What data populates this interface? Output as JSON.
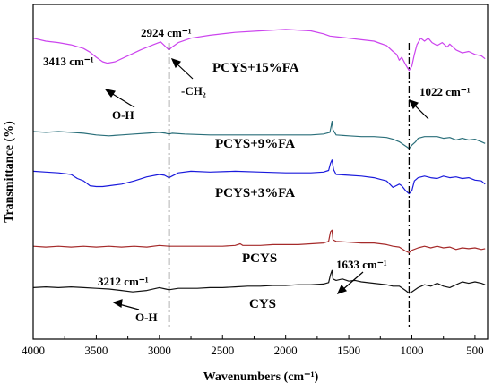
{
  "chart_data": {
    "type": "line",
    "xlabel": "Wavenumbers (cm⁻¹)",
    "ylabel": "Transmittance (%)",
    "xlim": [
      4000,
      400
    ],
    "x_reversed": true,
    "x_ticks": [
      4000,
      3500,
      3000,
      2500,
      2000,
      1500,
      1000,
      500
    ],
    "y_ticks_shown": false,
    "grid": false,
    "series": [
      {
        "name": "PCYS+15%FA",
        "color": "#cc44ee",
        "points": [
          [
            4000,
            44
          ],
          [
            3900,
            40
          ],
          [
            3800,
            38
          ],
          [
            3700,
            35
          ],
          [
            3600,
            30
          ],
          [
            3550,
            25
          ],
          [
            3500,
            18
          ],
          [
            3450,
            12
          ],
          [
            3413,
            10
          ],
          [
            3350,
            12
          ],
          [
            3250,
            20
          ],
          [
            3150,
            28
          ],
          [
            3050,
            35
          ],
          [
            2990,
            39
          ],
          [
            2960,
            34
          ],
          [
            2924,
            28
          ],
          [
            2900,
            32
          ],
          [
            2850,
            38
          ],
          [
            2750,
            44
          ],
          [
            2600,
            48
          ],
          [
            2400,
            52
          ],
          [
            2200,
            54
          ],
          [
            2000,
            56
          ],
          [
            1800,
            54
          ],
          [
            1700,
            50
          ],
          [
            1650,
            47
          ],
          [
            1600,
            46
          ],
          [
            1500,
            44
          ],
          [
            1400,
            42
          ],
          [
            1300,
            40
          ],
          [
            1250,
            37
          ],
          [
            1200,
            34
          ],
          [
            1150,
            26
          ],
          [
            1120,
            22
          ],
          [
            1100,
            14
          ],
          [
            1080,
            18
          ],
          [
            1050,
            8
          ],
          [
            1022,
            0
          ],
          [
            1000,
            6
          ],
          [
            980,
            22
          ],
          [
            960,
            35
          ],
          [
            930,
            44
          ],
          [
            900,
            40
          ],
          [
            870,
            44
          ],
          [
            840,
            38
          ],
          [
            800,
            34
          ],
          [
            760,
            38
          ],
          [
            720,
            32
          ],
          [
            700,
            36
          ],
          [
            650,
            28
          ],
          [
            600,
            24
          ],
          [
            550,
            26
          ],
          [
            500,
            22
          ],
          [
            450,
            20
          ],
          [
            420,
            16
          ]
        ]
      },
      {
        "name": "PCYS+9%FA",
        "color": "#2a6f7a",
        "points": [
          [
            4000,
            10
          ],
          [
            3900,
            9
          ],
          [
            3800,
            10
          ],
          [
            3700,
            9
          ],
          [
            3600,
            8
          ],
          [
            3500,
            6
          ],
          [
            3400,
            5
          ],
          [
            3300,
            6
          ],
          [
            3200,
            7
          ],
          [
            3100,
            8
          ],
          [
            3000,
            9
          ],
          [
            2950,
            8
          ],
          [
            2924,
            7
          ],
          [
            2900,
            8
          ],
          [
            2800,
            7
          ],
          [
            2600,
            6
          ],
          [
            2400,
            6
          ],
          [
            2200,
            6
          ],
          [
            2000,
            6
          ],
          [
            1800,
            6
          ],
          [
            1700,
            7
          ],
          [
            1650,
            9
          ],
          [
            1640,
            16
          ],
          [
            1633,
            22
          ],
          [
            1625,
            12
          ],
          [
            1600,
            6
          ],
          [
            1500,
            5
          ],
          [
            1400,
            4
          ],
          [
            1300,
            4
          ],
          [
            1200,
            3
          ],
          [
            1150,
            1
          ],
          [
            1100,
            -2
          ],
          [
            1060,
            -6
          ],
          [
            1040,
            -8
          ],
          [
            1022,
            -10
          ],
          [
            1000,
            -6
          ],
          [
            970,
            -2
          ],
          [
            950,
            2
          ],
          [
            900,
            4
          ],
          [
            850,
            4
          ],
          [
            800,
            4
          ],
          [
            750,
            2
          ],
          [
            700,
            3
          ],
          [
            650,
            0
          ],
          [
            600,
            2
          ],
          [
            550,
            0
          ],
          [
            500,
            1
          ],
          [
            450,
            -2
          ],
          [
            420,
            -4
          ]
        ]
      },
      {
        "name": "PCYS+3%FA",
        "color": "#1a1adc",
        "points": [
          [
            4000,
            14
          ],
          [
            3900,
            13
          ],
          [
            3800,
            12
          ],
          [
            3700,
            10
          ],
          [
            3650,
            5
          ],
          [
            3600,
            2
          ],
          [
            3550,
            -4
          ],
          [
            3500,
            -5
          ],
          [
            3450,
            -5
          ],
          [
            3400,
            -4
          ],
          [
            3300,
            -2
          ],
          [
            3200,
            2
          ],
          [
            3100,
            7
          ],
          [
            3000,
            10
          ],
          [
            2960,
            9
          ],
          [
            2924,
            6
          ],
          [
            2900,
            8
          ],
          [
            2850,
            12
          ],
          [
            2750,
            14
          ],
          [
            2600,
            13
          ],
          [
            2400,
            14
          ],
          [
            2200,
            13
          ],
          [
            2000,
            12
          ],
          [
            1800,
            12
          ],
          [
            1700,
            13
          ],
          [
            1660,
            15
          ],
          [
            1645,
            24
          ],
          [
            1633,
            28
          ],
          [
            1620,
            16
          ],
          [
            1600,
            10
          ],
          [
            1500,
            9
          ],
          [
            1400,
            8
          ],
          [
            1300,
            6
          ],
          [
            1250,
            4
          ],
          [
            1200,
            2
          ],
          [
            1150,
            -6
          ],
          [
            1100,
            -2
          ],
          [
            1080,
            -4
          ],
          [
            1050,
            -10
          ],
          [
            1022,
            -14
          ],
          [
            1000,
            -10
          ],
          [
            980,
            2
          ],
          [
            950,
            6
          ],
          [
            900,
            8
          ],
          [
            850,
            6
          ],
          [
            800,
            5
          ],
          [
            750,
            8
          ],
          [
            700,
            6
          ],
          [
            650,
            7
          ],
          [
            600,
            5
          ],
          [
            550,
            6
          ],
          [
            500,
            3
          ],
          [
            450,
            2
          ],
          [
            420,
            -2
          ]
        ]
      },
      {
        "name": "PCYS",
        "color": "#a52a2a",
        "points": [
          [
            4000,
            12
          ],
          [
            3900,
            11
          ],
          [
            3800,
            12
          ],
          [
            3700,
            11
          ],
          [
            3600,
            12
          ],
          [
            3500,
            11
          ],
          [
            3400,
            12
          ],
          [
            3300,
            11
          ],
          [
            3200,
            12
          ],
          [
            3100,
            11
          ],
          [
            3000,
            13
          ],
          [
            2924,
            12
          ],
          [
            2800,
            12
          ],
          [
            2700,
            12
          ],
          [
            2600,
            12
          ],
          [
            2500,
            12
          ],
          [
            2400,
            13
          ],
          [
            2360,
            15
          ],
          [
            2340,
            13
          ],
          [
            2300,
            13
          ],
          [
            2200,
            13
          ],
          [
            2100,
            14
          ],
          [
            2000,
            14
          ],
          [
            1900,
            14
          ],
          [
            1800,
            15
          ],
          [
            1700,
            16
          ],
          [
            1660,
            18
          ],
          [
            1645,
            30
          ],
          [
            1633,
            32
          ],
          [
            1625,
            20
          ],
          [
            1600,
            18
          ],
          [
            1500,
            17
          ],
          [
            1400,
            16
          ],
          [
            1300,
            16
          ],
          [
            1200,
            14
          ],
          [
            1150,
            12
          ],
          [
            1100,
            11
          ],
          [
            1050,
            6
          ],
          [
            1022,
            4
          ],
          [
            1000,
            7
          ],
          [
            950,
            10
          ],
          [
            900,
            12
          ],
          [
            850,
            10
          ],
          [
            800,
            12
          ],
          [
            750,
            10
          ],
          [
            700,
            11
          ],
          [
            650,
            8
          ],
          [
            600,
            10
          ],
          [
            550,
            9
          ],
          [
            500,
            10
          ],
          [
            450,
            8
          ],
          [
            420,
            9
          ]
        ]
      },
      {
        "name": "CYS",
        "color": "#111111",
        "points": [
          [
            4000,
            12
          ],
          [
            3900,
            13
          ],
          [
            3800,
            12
          ],
          [
            3700,
            13
          ],
          [
            3600,
            12
          ],
          [
            3500,
            11
          ],
          [
            3400,
            10
          ],
          [
            3300,
            8
          ],
          [
            3212,
            6
          ],
          [
            3100,
            8
          ],
          [
            3000,
            12
          ],
          [
            2950,
            10
          ],
          [
            2924,
            9
          ],
          [
            2850,
            11
          ],
          [
            2700,
            11
          ],
          [
            2600,
            12
          ],
          [
            2500,
            12
          ],
          [
            2400,
            13
          ],
          [
            2300,
            14
          ],
          [
            2200,
            14
          ],
          [
            2100,
            15
          ],
          [
            2000,
            15
          ],
          [
            1900,
            16
          ],
          [
            1800,
            16
          ],
          [
            1700,
            17
          ],
          [
            1660,
            19
          ],
          [
            1645,
            30
          ],
          [
            1633,
            36
          ],
          [
            1625,
            24
          ],
          [
            1600,
            22
          ],
          [
            1550,
            24
          ],
          [
            1500,
            21
          ],
          [
            1450,
            22
          ],
          [
            1400,
            20
          ],
          [
            1300,
            18
          ],
          [
            1200,
            16
          ],
          [
            1150,
            14
          ],
          [
            1100,
            14
          ],
          [
            1050,
            8
          ],
          [
            1022,
            4
          ],
          [
            1000,
            6
          ],
          [
            950,
            12
          ],
          [
            900,
            16
          ],
          [
            850,
            14
          ],
          [
            800,
            18
          ],
          [
            750,
            14
          ],
          [
            700,
            12
          ],
          [
            650,
            16
          ],
          [
            600,
            20
          ],
          [
            550,
            18
          ],
          [
            500,
            20
          ],
          [
            450,
            18
          ],
          [
            420,
            16
          ]
        ]
      }
    ],
    "series_labels": [
      {
        "text": "PCYS+15%FA",
        "color": "#cc44ee"
      },
      {
        "text": "PCYS+9%FA",
        "color": "#1a7a1a"
      },
      {
        "text": "PCYS+3%FA",
        "color": "#1a1adc"
      },
      {
        "text": "PCYS",
        "color": "#cc2222"
      },
      {
        "text": "CYS",
        "color": "#000000"
      }
    ],
    "annotations": {
      "a3413": "3413 cm⁻¹",
      "oh_top": "O-H",
      "a2924": "2924 cm⁻¹",
      "ch2": "-CH₂",
      "a1022": "1022 cm⁻¹",
      "a1633": "1633 cm⁻¹",
      "a3212": "3212 cm⁻¹",
      "oh_bottom": "O-H"
    },
    "reference_lines_x": [
      2924,
      1022
    ]
  }
}
